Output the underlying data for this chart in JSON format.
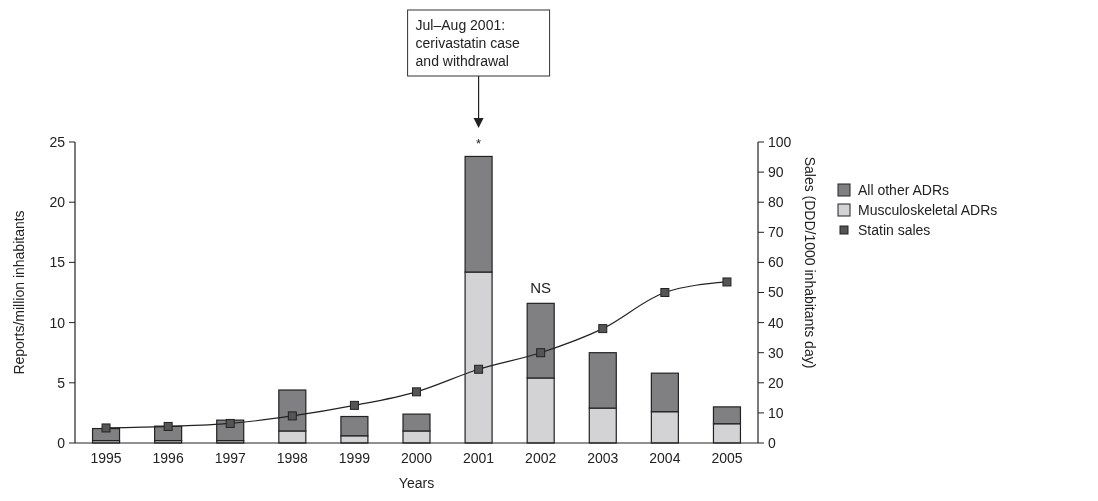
{
  "chart_data": {
    "type": "bar",
    "stacked": true,
    "xlabel": "Years",
    "ylabel": "Reports/million inhabitants",
    "y2label": "Sales (DDD/1000 inhabitants day)",
    "categories": [
      "1995",
      "1996",
      "1997",
      "1998",
      "1999",
      "2000",
      "2001",
      "2002",
      "2003",
      "2004",
      "2005"
    ],
    "series": [
      {
        "name": "Musculoskeletal ADRs",
        "color": "#d3d3d5",
        "values": [
          0.2,
          0.2,
          0.2,
          1.0,
          0.6,
          1.0,
          14.2,
          5.4,
          2.9,
          2.6,
          1.6
        ]
      },
      {
        "name": "All other ADRs",
        "color": "#808083",
        "values": [
          1.0,
          1.2,
          1.7,
          3.4,
          1.6,
          1.4,
          9.6,
          6.2,
          4.6,
          3.2,
          1.4
        ]
      },
      {
        "name": "Statin sales",
        "type": "line",
        "axis": "y2",
        "color": "#555555",
        "marker": "square",
        "values": [
          5,
          5.5,
          6.5,
          9,
          12.5,
          17,
          24.5,
          30,
          38,
          50,
          53.5
        ]
      }
    ],
    "ylim": [
      0,
      25
    ],
    "yticks": [
      0,
      5,
      10,
      15,
      20,
      25
    ],
    "y2lim": [
      0,
      100
    ],
    "y2ticks": [
      0,
      10,
      20,
      30,
      40,
      50,
      60,
      70,
      80,
      90,
      100
    ],
    "legend": "right",
    "annotations": [
      "Jul–Aug 2001:\ncerivastatin case\nand withdrawal",
      {
        "text": "*",
        "x": "2001",
        "y": 23.8
      },
      {
        "text": "NS",
        "x": "2002",
        "y": 11.6
      }
    ]
  }
}
